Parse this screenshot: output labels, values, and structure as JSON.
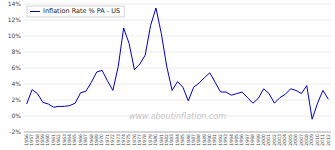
{
  "chart_data": {
    "type": "line",
    "x": [
      1956,
      1957,
      1958,
      1959,
      1960,
      1961,
      1962,
      1963,
      1964,
      1965,
      1966,
      1967,
      1968,
      1969,
      1970,
      1971,
      1972,
      1973,
      1974,
      1975,
      1976,
      1977,
      1978,
      1979,
      1980,
      1981,
      1982,
      1983,
      1984,
      1985,
      1986,
      1987,
      1988,
      1989,
      1990,
      1991,
      1992,
      1993,
      1994,
      1995,
      1996,
      1997,
      1998,
      1999,
      2000,
      2001,
      2002,
      2003,
      2004,
      2005,
      2006,
      2007,
      2008,
      2009,
      2010,
      2011,
      2012
    ],
    "series": [
      {
        "name": "Inflation Rate % PA - US",
        "color": "#0000bb",
        "values": [
          1.5,
          3.3,
          2.8,
          1.7,
          1.5,
          1.1,
          1.2,
          1.2,
          1.3,
          1.6,
          2.9,
          3.1,
          4.2,
          5.5,
          5.7,
          4.4,
          3.2,
          6.2,
          11.0,
          9.1,
          5.8,
          6.5,
          7.6,
          11.3,
          13.5,
          10.3,
          6.2,
          3.2,
          4.3,
          3.6,
          1.9,
          3.6,
          4.1,
          4.8,
          5.4,
          4.2,
          3.0,
          3.0,
          2.6,
          2.8,
          3.0,
          2.3,
          1.6,
          2.2,
          3.4,
          2.8,
          1.6,
          2.3,
          2.7,
          3.4,
          3.2,
          2.8,
          3.8,
          -0.4,
          1.6,
          3.2,
          2.1
        ]
      }
    ],
    "xlim": [
      1955.5,
      2012.5
    ],
    "xticks": [
      1956,
      1957,
      1958,
      1959,
      1960,
      1961,
      1962,
      1963,
      1964,
      1965,
      1966,
      1967,
      1968,
      1969,
      1970,
      1971,
      1972,
      1973,
      1974,
      1975,
      1976,
      1977,
      1978,
      1979,
      1980,
      1981,
      1982,
      1983,
      1984,
      1985,
      1986,
      1987,
      1988,
      1989,
      1990,
      1991,
      1992,
      1993,
      1994,
      1995,
      1996,
      1997,
      1998,
      1999,
      2000,
      2001,
      2002,
      2003,
      2004,
      2005,
      2006,
      2007,
      2008,
      2009,
      2010,
      2011,
      2012
    ],
    "ylim": [
      -2,
      14
    ],
    "yticks": [
      {
        "value": -2,
        "label": "-2%"
      },
      {
        "value": 0,
        "label": "0%"
      },
      {
        "value": 2,
        "label": "2%"
      },
      {
        "value": 4,
        "label": "4%"
      },
      {
        "value": 6,
        "label": "6%"
      },
      {
        "value": 8,
        "label": "8%"
      },
      {
        "value": 10,
        "label": "10%"
      },
      {
        "value": 12,
        "label": "12%"
      },
      {
        "value": 14,
        "label": "14%"
      }
    ],
    "grid": true,
    "legend": "upper left",
    "annotations": [
      "www.aboutinflation.com"
    ]
  }
}
